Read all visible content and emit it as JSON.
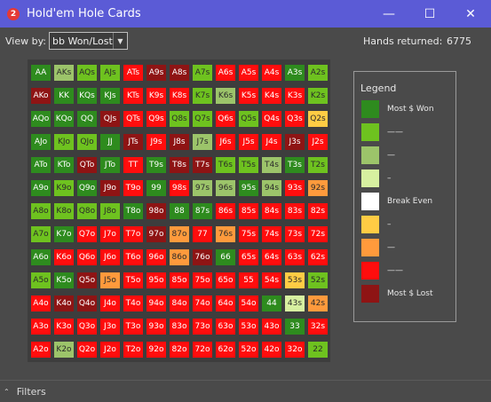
{
  "window": {
    "app_icon": "2",
    "title": "Hold'em Hole Cards",
    "minimize_glyph": "—",
    "maximize_glyph": "☐",
    "close_glyph": "✕"
  },
  "toolbar": {
    "view_by_label": "View by:",
    "view_by_value": "bb Won/Lost",
    "dropdown_glyph": "▼",
    "hands_label": "Hands returned:",
    "hands_value": "6775"
  },
  "colors": {
    "1": "#2e8b1e",
    "2": "#6ec21f",
    "3": "#9cc46a",
    "4": "#d7f0a0",
    "5": "#ffffff",
    "6": "#ffcc44",
    "7": "#ff9a3c",
    "8": "#ff0d0d",
    "9": "#8e1414"
  },
  "grid": {
    "rows": [
      [
        {
          "l": "AA",
          "c": 1
        },
        {
          "l": "AKs",
          "c": 3
        },
        {
          "l": "AQs",
          "c": 2
        },
        {
          "l": "AJs",
          "c": 2
        },
        {
          "l": "ATs",
          "c": 8
        },
        {
          "l": "A9s",
          "c": 9
        },
        {
          "l": "A8s",
          "c": 9
        },
        {
          "l": "A7s",
          "c": 2
        },
        {
          "l": "A6s",
          "c": 8
        },
        {
          "l": "A5s",
          "c": 8
        },
        {
          "l": "A4s",
          "c": 8
        },
        {
          "l": "A3s",
          "c": 1
        },
        {
          "l": "A2s",
          "c": 2
        }
      ],
      [
        {
          "l": "AKo",
          "c": 9
        },
        {
          "l": "KK",
          "c": 1
        },
        {
          "l": "KQs",
          "c": 1
        },
        {
          "l": "KJs",
          "c": 1
        },
        {
          "l": "KTs",
          "c": 8
        },
        {
          "l": "K9s",
          "c": 8
        },
        {
          "l": "K8s",
          "c": 8
        },
        {
          "l": "K7s",
          "c": 2
        },
        {
          "l": "K6s",
          "c": 3
        },
        {
          "l": "K5s",
          "c": 8
        },
        {
          "l": "K4s",
          "c": 8
        },
        {
          "l": "K3s",
          "c": 8
        },
        {
          "l": "K2s",
          "c": 2
        }
      ],
      [
        {
          "l": "AQo",
          "c": 1
        },
        {
          "l": "KQo",
          "c": 1
        },
        {
          "l": "QQ",
          "c": 1
        },
        {
          "l": "QJs",
          "c": 9
        },
        {
          "l": "QTs",
          "c": 8
        },
        {
          "l": "Q9s",
          "c": 8
        },
        {
          "l": "Q8s",
          "c": 2
        },
        {
          "l": "Q7s",
          "c": 2
        },
        {
          "l": "Q6s",
          "c": 8
        },
        {
          "l": "Q5s",
          "c": 2
        },
        {
          "l": "Q4s",
          "c": 8
        },
        {
          "l": "Q3s",
          "c": 8
        },
        {
          "l": "Q2s",
          "c": 6
        }
      ],
      [
        {
          "l": "AJo",
          "c": 1
        },
        {
          "l": "KJo",
          "c": 2
        },
        {
          "l": "QJo",
          "c": 2
        },
        {
          "l": "JJ",
          "c": 1
        },
        {
          "l": "JTs",
          "c": 9
        },
        {
          "l": "J9s",
          "c": 8
        },
        {
          "l": "J8s",
          "c": 9
        },
        {
          "l": "J7s",
          "c": 3
        },
        {
          "l": "J6s",
          "c": 8
        },
        {
          "l": "J5s",
          "c": 8
        },
        {
          "l": "J4s",
          "c": 8
        },
        {
          "l": "J3s",
          "c": 9
        },
        {
          "l": "J2s",
          "c": 8
        }
      ],
      [
        {
          "l": "ATo",
          "c": 1
        },
        {
          "l": "KTo",
          "c": 1
        },
        {
          "l": "QTo",
          "c": 9
        },
        {
          "l": "JTo",
          "c": 1
        },
        {
          "l": "TT",
          "c": 8
        },
        {
          "l": "T9s",
          "c": 1
        },
        {
          "l": "T8s",
          "c": 9
        },
        {
          "l": "T7s",
          "c": 9
        },
        {
          "l": "T6s",
          "c": 2
        },
        {
          "l": "T5s",
          "c": 2
        },
        {
          "l": "T4s",
          "c": 3
        },
        {
          "l": "T3s",
          "c": 1
        },
        {
          "l": "T2s",
          "c": 2
        }
      ],
      [
        {
          "l": "A9o",
          "c": 1
        },
        {
          "l": "K9o",
          "c": 2
        },
        {
          "l": "Q9o",
          "c": 1
        },
        {
          "l": "J9o",
          "c": 9
        },
        {
          "l": "T9o",
          "c": 8
        },
        {
          "l": "99",
          "c": 1
        },
        {
          "l": "98s",
          "c": 8
        },
        {
          "l": "97s",
          "c": 3
        },
        {
          "l": "96s",
          "c": 3
        },
        {
          "l": "95s",
          "c": 1
        },
        {
          "l": "94s",
          "c": 3
        },
        {
          "l": "93s",
          "c": 8
        },
        {
          "l": "92s",
          "c": 7
        }
      ],
      [
        {
          "l": "A8o",
          "c": 2
        },
        {
          "l": "K8o",
          "c": 2
        },
        {
          "l": "Q8o",
          "c": 2
        },
        {
          "l": "J8o",
          "c": 2
        },
        {
          "l": "T8o",
          "c": 1
        },
        {
          "l": "98o",
          "c": 9
        },
        {
          "l": "88",
          "c": 1
        },
        {
          "l": "87s",
          "c": 1
        },
        {
          "l": "86s",
          "c": 8
        },
        {
          "l": "85s",
          "c": 8
        },
        {
          "l": "84s",
          "c": 8
        },
        {
          "l": "83s",
          "c": 8
        },
        {
          "l": "82s",
          "c": 8
        }
      ],
      [
        {
          "l": "A7o",
          "c": 2
        },
        {
          "l": "K7o",
          "c": 1
        },
        {
          "l": "Q7o",
          "c": 8
        },
        {
          "l": "J7o",
          "c": 8
        },
        {
          "l": "T7o",
          "c": 8
        },
        {
          "l": "97o",
          "c": 9
        },
        {
          "l": "87o",
          "c": 7
        },
        {
          "l": "77",
          "c": 8
        },
        {
          "l": "76s",
          "c": 7
        },
        {
          "l": "75s",
          "c": 8
        },
        {
          "l": "74s",
          "c": 8
        },
        {
          "l": "73s",
          "c": 8
        },
        {
          "l": "72s",
          "c": 8
        }
      ],
      [
        {
          "l": "A6o",
          "c": 1
        },
        {
          "l": "K6o",
          "c": 8
        },
        {
          "l": "Q6o",
          "c": 8
        },
        {
          "l": "J6o",
          "c": 8
        },
        {
          "l": "T6o",
          "c": 8
        },
        {
          "l": "96o",
          "c": 8
        },
        {
          "l": "86o",
          "c": 7
        },
        {
          "l": "76o",
          "c": 9
        },
        {
          "l": "66",
          "c": 1
        },
        {
          "l": "65s",
          "c": 8
        },
        {
          "l": "64s",
          "c": 8
        },
        {
          "l": "63s",
          "c": 8
        },
        {
          "l": "62s",
          "c": 8
        }
      ],
      [
        {
          "l": "A5o",
          "c": 2
        },
        {
          "l": "K5o",
          "c": 1
        },
        {
          "l": "Q5o",
          "c": 9
        },
        {
          "l": "J5o",
          "c": 7
        },
        {
          "l": "T5o",
          "c": 8
        },
        {
          "l": "95o",
          "c": 8
        },
        {
          "l": "85o",
          "c": 8
        },
        {
          "l": "75o",
          "c": 8
        },
        {
          "l": "65o",
          "c": 8
        },
        {
          "l": "55",
          "c": 8
        },
        {
          "l": "54s",
          "c": 8
        },
        {
          "l": "53s",
          "c": 6
        },
        {
          "l": "52s",
          "c": 2
        }
      ],
      [
        {
          "l": "A4o",
          "c": 8
        },
        {
          "l": "K4o",
          "c": 9
        },
        {
          "l": "Q4o",
          "c": 9
        },
        {
          "l": "J4o",
          "c": 8
        },
        {
          "l": "T4o",
          "c": 8
        },
        {
          "l": "94o",
          "c": 8
        },
        {
          "l": "84o",
          "c": 8
        },
        {
          "l": "74o",
          "c": 8
        },
        {
          "l": "64o",
          "c": 8
        },
        {
          "l": "54o",
          "c": 8
        },
        {
          "l": "44",
          "c": 1
        },
        {
          "l": "43s",
          "c": 4
        },
        {
          "l": "42s",
          "c": 7
        }
      ],
      [
        {
          "l": "A3o",
          "c": 8
        },
        {
          "l": "K3o",
          "c": 8
        },
        {
          "l": "Q3o",
          "c": 8
        },
        {
          "l": "J3o",
          "c": 8
        },
        {
          "l": "T3o",
          "c": 8
        },
        {
          "l": "93o",
          "c": 8
        },
        {
          "l": "83o",
          "c": 8
        },
        {
          "l": "73o",
          "c": 8
        },
        {
          "l": "63o",
          "c": 8
        },
        {
          "l": "53o",
          "c": 8
        },
        {
          "l": "43o",
          "c": 8
        },
        {
          "l": "33",
          "c": 1
        },
        {
          "l": "32s",
          "c": 8
        }
      ],
      [
        {
          "l": "A2o",
          "c": 8
        },
        {
          "l": "K2o",
          "c": 3
        },
        {
          "l": "Q2o",
          "c": 8
        },
        {
          "l": "J2o",
          "c": 8
        },
        {
          "l": "T2o",
          "c": 8
        },
        {
          "l": "92o",
          "c": 8
        },
        {
          "l": "82o",
          "c": 8
        },
        {
          "l": "72o",
          "c": 8
        },
        {
          "l": "62o",
          "c": 8
        },
        {
          "l": "52o",
          "c": 8
        },
        {
          "l": "42o",
          "c": 8
        },
        {
          "l": "32o",
          "c": 8
        },
        {
          "l": "22",
          "c": 2
        }
      ]
    ]
  },
  "legend": {
    "title": "Legend",
    "items": [
      {
        "label": "Most $ Won",
        "c": 1
      },
      {
        "label": "——",
        "c": 2
      },
      {
        "label": "—",
        "c": 3
      },
      {
        "label": "–",
        "c": 4
      },
      {
        "label": "Break Even",
        "c": 5
      },
      {
        "label": "–",
        "c": 6
      },
      {
        "label": "—",
        "c": 7
      },
      {
        "label": "——",
        "c": 8
      },
      {
        "label": "Most $ Lost",
        "c": 9
      }
    ]
  },
  "footer": {
    "chevron_glyph": "⌃",
    "filters_label": "Filters"
  }
}
